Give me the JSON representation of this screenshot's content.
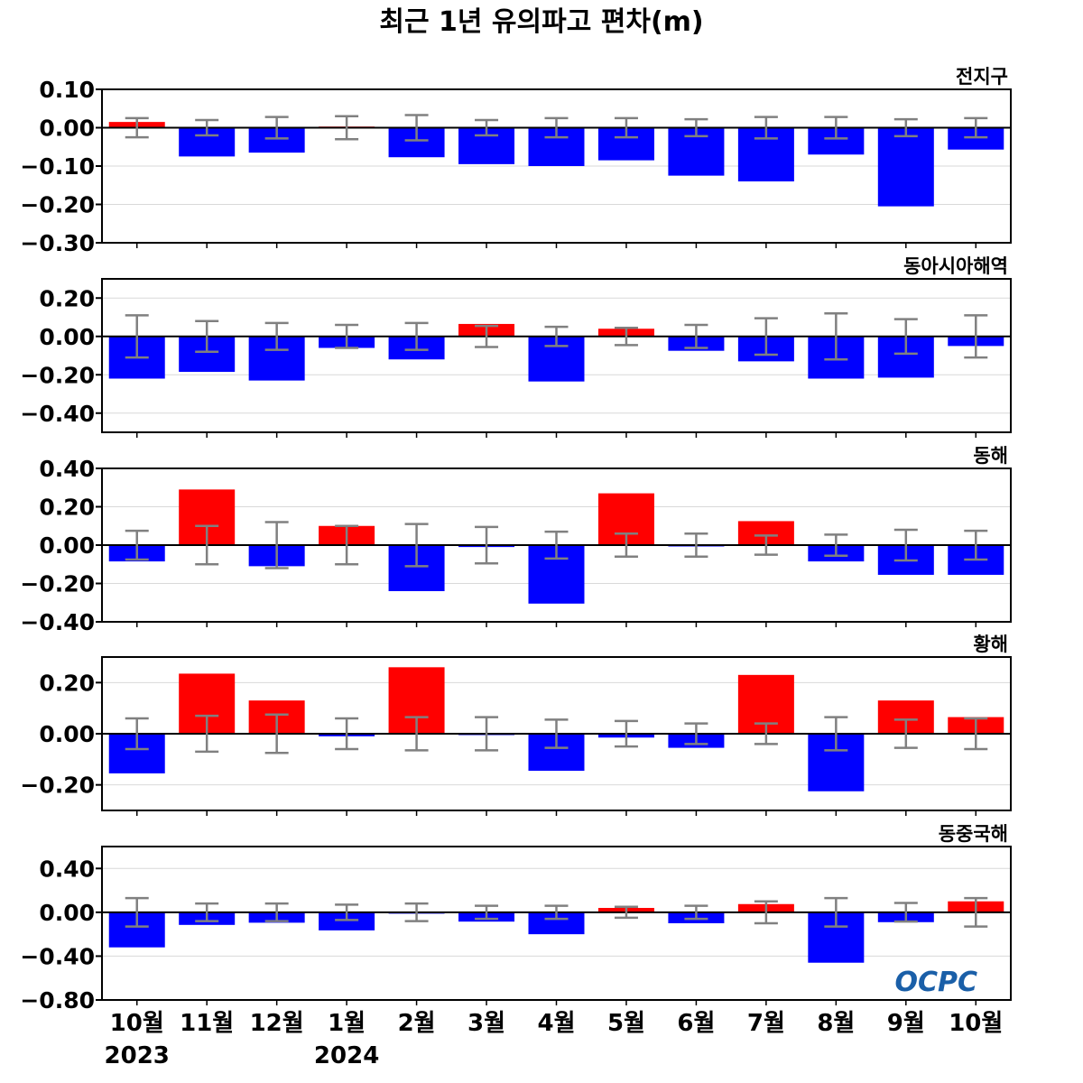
{
  "title": "최근 1년 유의파고 편차(m)",
  "logo": "OCPC",
  "colors": {
    "positive": "#ff0000",
    "negative": "#0000ff",
    "error_bar": "#808080",
    "zero_line": "#000000",
    "grid": "#d9d9d9",
    "logo": "#1a5fa8"
  },
  "chart_data": [
    {
      "type": "bar",
      "region": "전지구",
      "categories": [
        "10월",
        "11월",
        "12월",
        "1월",
        "2월",
        "3월",
        "4월",
        "5월",
        "6월",
        "7월",
        "8월",
        "9월",
        "10월"
      ],
      "values": [
        0.015,
        -0.075,
        -0.065,
        0.003,
        -0.077,
        -0.095,
        -0.1,
        -0.085,
        -0.125,
        -0.14,
        -0.07,
        -0.205,
        -0.057
      ],
      "error": [
        0.025,
        0.02,
        0.028,
        0.03,
        0.033,
        0.02,
        0.025,
        0.025,
        0.022,
        0.028,
        0.028,
        0.022,
        0.025
      ],
      "ylim": [
        -0.3,
        0.1
      ],
      "yticks": [
        0.1,
        0.0,
        -0.1,
        -0.2,
        -0.3
      ],
      "ytick_labels": [
        "0.10",
        "0.00",
        "−0.10",
        "−0.20",
        "−0.30"
      ]
    },
    {
      "type": "bar",
      "region": "동아시아해역",
      "categories": [
        "10월",
        "11월",
        "12월",
        "1월",
        "2월",
        "3월",
        "4월",
        "5월",
        "6월",
        "7월",
        "8월",
        "9월",
        "10월"
      ],
      "values": [
        -0.22,
        -0.185,
        -0.23,
        -0.06,
        -0.12,
        0.065,
        -0.235,
        0.04,
        -0.075,
        -0.13,
        -0.22,
        -0.215,
        -0.05
      ],
      "error": [
        0.11,
        0.08,
        0.07,
        0.06,
        0.07,
        0.055,
        0.05,
        0.045,
        0.06,
        0.095,
        0.12,
        0.09,
        0.11
      ],
      "ylim": [
        -0.5,
        0.3
      ],
      "yticks": [
        0.2,
        0.0,
        -0.2,
        -0.4
      ],
      "ytick_labels": [
        "0.20",
        "0.00",
        "−0.20",
        "−0.40"
      ]
    },
    {
      "type": "bar",
      "region": "동해",
      "categories": [
        "10월",
        "11월",
        "12월",
        "1월",
        "2월",
        "3월",
        "4월",
        "5월",
        "6월",
        "7월",
        "8월",
        "9월",
        "10월"
      ],
      "values": [
        -0.085,
        0.29,
        -0.11,
        0.1,
        -0.24,
        -0.01,
        -0.305,
        0.27,
        -0.005,
        0.125,
        -0.085,
        -0.155,
        -0.155
      ],
      "error": [
        0.075,
        0.1,
        0.12,
        0.1,
        0.11,
        0.095,
        0.07,
        0.06,
        0.06,
        0.05,
        0.055,
        0.08,
        0.075
      ],
      "ylim": [
        -0.4,
        0.4
      ],
      "yticks": [
        0.4,
        0.2,
        0.0,
        -0.2,
        -0.4
      ],
      "ytick_labels": [
        "0.40",
        "0.20",
        "0.00",
        "−0.20",
        "−0.40"
      ]
    },
    {
      "type": "bar",
      "region": "황해",
      "categories": [
        "10월",
        "11월",
        "12월",
        "1월",
        "2월",
        "3월",
        "4월",
        "5월",
        "6월",
        "7월",
        "8월",
        "9월",
        "10월"
      ],
      "values": [
        -0.155,
        0.235,
        0.13,
        -0.01,
        0.26,
        -0.005,
        -0.145,
        -0.015,
        -0.055,
        0.23,
        -0.225,
        0.13,
        0.065
      ],
      "error": [
        0.06,
        0.07,
        0.075,
        0.06,
        0.065,
        0.065,
        0.055,
        0.05,
        0.04,
        0.04,
        0.065,
        0.055,
        0.06
      ],
      "ylim": [
        -0.3,
        0.3
      ],
      "yticks": [
        0.2,
        0.0,
        -0.2
      ],
      "ytick_labels": [
        "0.20",
        "0.00",
        "−0.20"
      ]
    },
    {
      "type": "bar",
      "region": "동중국해",
      "categories": [
        "10월",
        "11월",
        "12월",
        "1월",
        "2월",
        "3월",
        "4월",
        "5월",
        "6월",
        "7월",
        "8월",
        "9월",
        "10월"
      ],
      "values": [
        -0.32,
        -0.115,
        -0.095,
        -0.165,
        -0.01,
        -0.085,
        -0.2,
        0.04,
        -0.1,
        0.075,
        -0.46,
        -0.09,
        0.1
      ],
      "error": [
        0.13,
        0.08,
        0.08,
        0.07,
        0.08,
        0.06,
        0.06,
        0.05,
        0.06,
        0.1,
        0.13,
        0.085,
        0.13
      ],
      "ylim": [
        -0.8,
        0.6
      ],
      "yticks": [
        0.4,
        0.0,
        -0.4,
        -0.8
      ],
      "ytick_labels": [
        "0.40",
        "0.00",
        "−0.40",
        "−0.80"
      ]
    }
  ],
  "x_axis": {
    "months": [
      "10월",
      "11월",
      "12월",
      "1월",
      "2월",
      "3월",
      "4월",
      "5월",
      "6월",
      "7월",
      "8월",
      "9월",
      "10월"
    ],
    "year_labels": [
      {
        "text": "2023",
        "index": 0
      },
      {
        "text": "2024",
        "index": 3
      }
    ]
  }
}
